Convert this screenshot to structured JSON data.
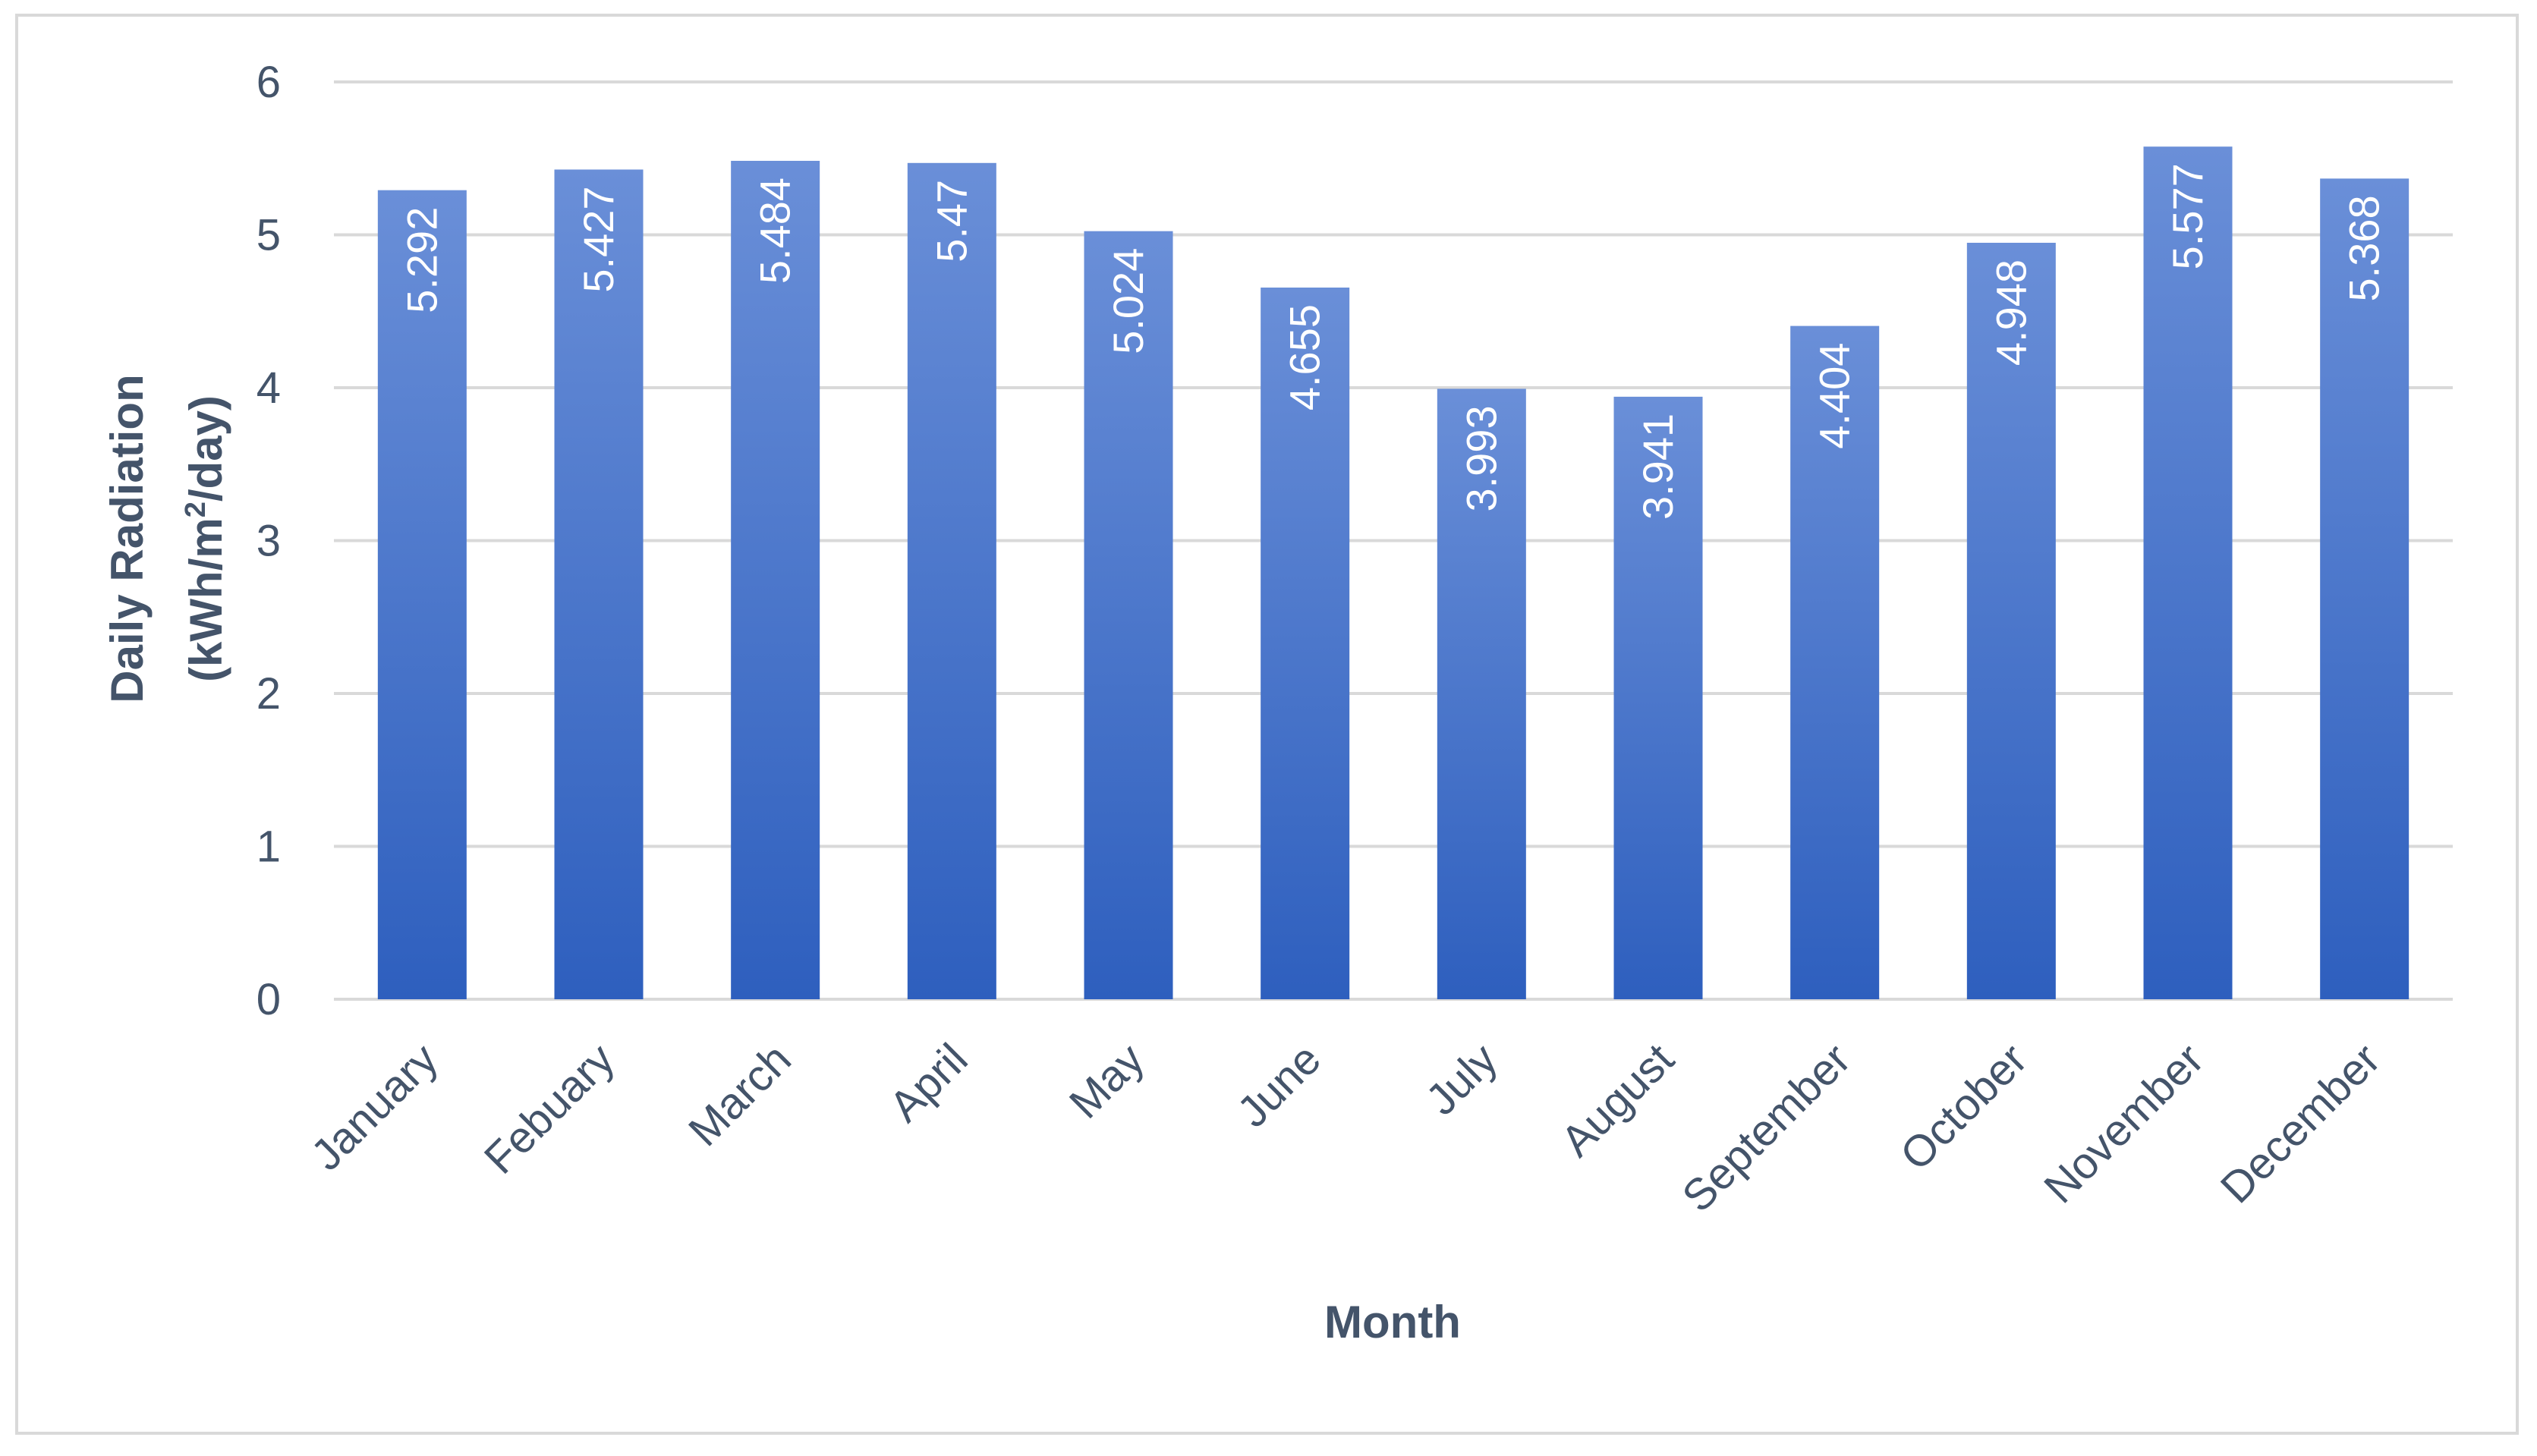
{
  "chart_data": {
    "type": "bar",
    "title": "",
    "xlabel": "Month",
    "ylabel_line1": "Daily Radiation",
    "ylabel_line2_prefix": "(kWh/m",
    "ylabel_line2_sup": "2",
    "ylabel_line2_suffix": "/day)",
    "categories": [
      "January",
      "Febuary",
      "March",
      "April",
      "May",
      "June",
      "July",
      "August",
      "September",
      "October",
      "November",
      "December"
    ],
    "values": [
      5.292,
      5.427,
      5.484,
      5.47,
      5.024,
      4.655,
      3.993,
      3.941,
      4.404,
      4.948,
      5.577,
      5.368
    ],
    "value_labels": [
      "5.292",
      "5.427",
      "5.484",
      "5.47",
      "5.024",
      "4.655",
      "3.993",
      "3.941",
      "4.404",
      "4.948",
      "5.577",
      "5.368"
    ],
    "ylim": [
      0,
      6
    ],
    "yticks": [
      0,
      1,
      2,
      3,
      4,
      5,
      6
    ],
    "grid": true,
    "legend": "none",
    "bar_color_top": "#6a8fd8",
    "bar_color_bottom": "#2e5fbe"
  }
}
